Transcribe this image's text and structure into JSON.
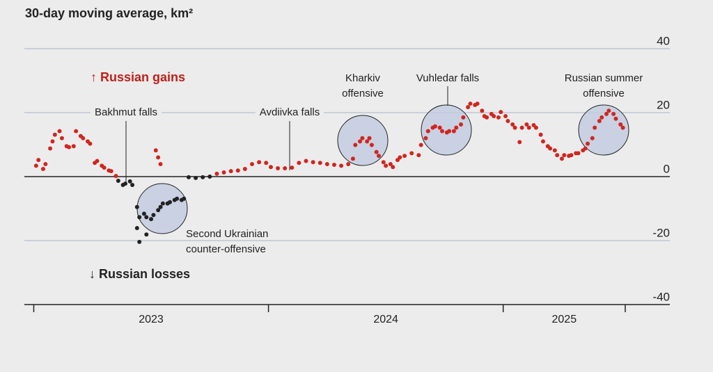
{
  "chart_data": {
    "type": "scatter",
    "title": "30-day moving average, km²",
    "gains_label": "↑ Russian gains",
    "losses_label": "↓ Russian losses",
    "annotations": [
      {
        "lines": [
          "Bakhmut falls"
        ]
      },
      {
        "lines": [
          "Avdiivka falls"
        ]
      },
      {
        "lines": [
          "Kharkiv",
          "offensive"
        ]
      },
      {
        "lines": [
          "Vuhledar falls"
        ]
      },
      {
        "lines": [
          "Russian summer",
          "offensive"
        ]
      },
      {
        "lines": [
          "Second Ukrainian",
          "counter-offensive"
        ]
      }
    ],
    "xlim": [
      2022.96,
      2025.71
    ],
    "xticks": [
      2023,
      2024,
      2025,
      2025.52
    ],
    "year_labels": [
      {
        "value": 2023.5,
        "label": "2023"
      },
      {
        "value": 2024.5,
        "label": "2024"
      },
      {
        "value": 2025.26,
        "label": "2025"
      }
    ],
    "ylim": [
      -40,
      40
    ],
    "yticks": [
      -40,
      -20,
      0,
      20,
      40
    ],
    "grid": true,
    "series": [
      {
        "color": "#d0261f",
        "x": [
          2023.01,
          2023.02,
          2023.04,
          2023.05,
          2023.07,
          2023.08,
          2023.09,
          2023.11,
          2023.12,
          2023.14,
          2023.15,
          2023.17,
          2023.18,
          2023.2,
          2023.21,
          2023.23,
          2023.24,
          2023.26,
          2023.27,
          2023.29,
          2023.3,
          2023.32,
          2023.33,
          2023.35,
          2023.52,
          2023.53,
          2023.54,
          2023.78,
          2023.81,
          2023.84,
          2023.87,
          2023.9,
          2023.93,
          2023.96,
          2023.99,
          2024.01,
          2024.04,
          2024.07,
          2024.1,
          2024.13,
          2024.16,
          2024.19,
          2024.22,
          2024.25,
          2024.28,
          2024.31,
          2024.34,
          2024.36,
          2024.37,
          2024.39,
          2024.4,
          2024.42,
          2024.43,
          2024.44,
          2024.46,
          2024.47,
          2024.49,
          2024.5,
          2024.52,
          2024.53,
          2024.55,
          2024.56,
          2024.58,
          2024.61,
          2024.64,
          2024.65,
          2024.67,
          2024.68,
          2024.7,
          2024.71,
          2024.73,
          2024.74,
          2024.76,
          2024.77,
          2024.79,
          2024.8,
          2024.82,
          2024.83,
          2024.85,
          2024.86,
          2024.88,
          2024.89,
          2024.91,
          2024.92,
          2024.93,
          2024.95,
          2024.96,
          2024.98,
          2024.99,
          2025.01,
          2025.02,
          2025.04,
          2025.05,
          2025.07,
          2025.08,
          2025.1,
          2025.11,
          2025.13,
          2025.14,
          2025.16,
          2025.17,
          2025.19,
          2025.2,
          2025.22,
          2025.23,
          2025.25,
          2025.26,
          2025.28,
          2025.29,
          2025.31,
          2025.32,
          2025.34,
          2025.35,
          2025.36,
          2025.38,
          2025.39,
          2025.41,
          2025.42,
          2025.44,
          2025.45,
          2025.47,
          2025.48,
          2025.5,
          2025.51
        ],
        "values": [
          3.4,
          5.2,
          2.4,
          3.9,
          8.8,
          11.0,
          13.1,
          14.2,
          12.0,
          9.5,
          9.2,
          9.5,
          14.2,
          12.7,
          12.0,
          11.0,
          10.3,
          4.3,
          4.9,
          3.4,
          2.8,
          1.9,
          1.7,
          0.2,
          8.2,
          6.0,
          3.9,
          0.9,
          1.3,
          1.7,
          1.9,
          2.4,
          3.9,
          4.5,
          4.3,
          3.0,
          2.6,
          2.6,
          2.8,
          4.3,
          4.9,
          4.5,
          4.3,
          3.9,
          3.7,
          3.4,
          3.9,
          5.6,
          9.9,
          11.0,
          12.0,
          11.0,
          12.0,
          9.9,
          7.7,
          6.5,
          4.5,
          3.4,
          3.9,
          3.0,
          5.2,
          6.0,
          6.5,
          7.3,
          6.7,
          9.9,
          12.0,
          14.2,
          15.3,
          15.7,
          15.3,
          14.2,
          13.8,
          14.2,
          14.2,
          15.3,
          16.3,
          18.5,
          21.7,
          22.8,
          22.4,
          22.8,
          20.6,
          18.9,
          18.5,
          19.6,
          18.9,
          18.5,
          20.2,
          18.9,
          17.4,
          16.3,
          15.3,
          10.8,
          15.3,
          16.3,
          15.3,
          16.1,
          15.3,
          13.1,
          11.0,
          9.5,
          8.8,
          8.2,
          6.7,
          5.6,
          6.7,
          6.5,
          6.7,
          7.3,
          7.3,
          8.2,
          8.8,
          10.3,
          12.0,
          15.3,
          17.4,
          18.5,
          19.6,
          20.6,
          19.6,
          18.1,
          16.3,
          15.3
        ]
      },
      {
        "color": "#222222",
        "x": [
          2023.36,
          2023.38,
          2023.39,
          2023.41,
          2023.42,
          2023.44,
          2023.44,
          2023.45,
          2023.45,
          2023.47,
          2023.48,
          2023.48,
          2023.5,
          2023.51,
          2023.53,
          2023.54,
          2023.55,
          2023.57,
          2023.58,
          2023.6,
          2023.61,
          2023.63,
          2023.64,
          2023.66,
          2023.69,
          2023.72,
          2023.75
        ],
        "values": [
          -1.3,
          -2.6,
          -2.2,
          -1.5,
          -2.6,
          -9.5,
          -16.1,
          -20.4,
          -12.7,
          -11.6,
          -12.7,
          -18.1,
          -13.3,
          -12.0,
          -10.5,
          -9.5,
          -8.4,
          -8.4,
          -8.0,
          -7.3,
          -6.9,
          -7.3,
          -6.9,
          -0.2,
          -0.4,
          -0.2,
          0
        ]
      }
    ]
  }
}
